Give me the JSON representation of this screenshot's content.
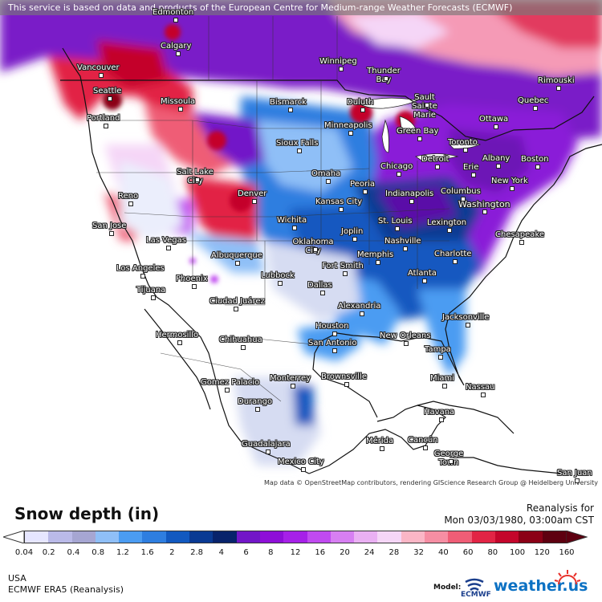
{
  "header": {
    "attribution": "This service is based on data and products of the European Centre for Medium-range Weather Forecasts (ECMWF)"
  },
  "map": {
    "credit": "Map data © OpenStreetMap contributors, rendering GIScience Research Group @ Heidelberg University",
    "cities": [
      {
        "name": "Edmonton"
      },
      {
        "name": "Calgary"
      },
      {
        "name": "Vancouver"
      },
      {
        "name": "Seattle"
      },
      {
        "name": "Winnipeg"
      },
      {
        "name": "Thunder Bay"
      },
      {
        "name": "Sault Sainte Marie"
      },
      {
        "name": "Rimouski"
      },
      {
        "name": "Quebec"
      },
      {
        "name": "Ottawa"
      },
      {
        "name": "Missoula"
      },
      {
        "name": "Bismarck"
      },
      {
        "name": "Duluth"
      },
      {
        "name": "Portland"
      },
      {
        "name": "Minneapolis"
      },
      {
        "name": "Green Bay"
      },
      {
        "name": "Toronto"
      },
      {
        "name": "Sioux Falls"
      },
      {
        "name": "Detroit"
      },
      {
        "name": "Albany"
      },
      {
        "name": "Boston"
      },
      {
        "name": "Erie"
      },
      {
        "name": "Salt Lake City"
      },
      {
        "name": "Chicago"
      },
      {
        "name": "Omaha"
      },
      {
        "name": "Peoria"
      },
      {
        "name": "New York"
      },
      {
        "name": "Reno"
      },
      {
        "name": "Denver"
      },
      {
        "name": "Indianapolis"
      },
      {
        "name": "Columbus"
      },
      {
        "name": "Kansas City"
      },
      {
        "name": "Washington"
      },
      {
        "name": "San Jose"
      },
      {
        "name": "Wichita"
      },
      {
        "name": "St. Louis"
      },
      {
        "name": "Lexington"
      },
      {
        "name": "Joplin"
      },
      {
        "name": "Las Vegas"
      },
      {
        "name": "Chesapeake"
      },
      {
        "name": "Oklahoma City"
      },
      {
        "name": "Nashville"
      },
      {
        "name": "Albuquerque"
      },
      {
        "name": "Charlotte"
      },
      {
        "name": "Fort Smith"
      },
      {
        "name": "Memphis"
      },
      {
        "name": "Los Angeles"
      },
      {
        "name": "Lubbock"
      },
      {
        "name": "Phoenix"
      },
      {
        "name": "Atlanta"
      },
      {
        "name": "Dallas"
      },
      {
        "name": "Tijuana"
      },
      {
        "name": "Ciudad Juárez"
      },
      {
        "name": "Alexandria"
      },
      {
        "name": "Jacksonville"
      },
      {
        "name": "Hermosillo"
      },
      {
        "name": "Houston"
      },
      {
        "name": "New Orleans"
      },
      {
        "name": "San Antonio"
      },
      {
        "name": "Chihuahua"
      },
      {
        "name": "Tampa"
      },
      {
        "name": "Monterrey"
      },
      {
        "name": "Brownsville"
      },
      {
        "name": "Gomez Palacio"
      },
      {
        "name": "Miami"
      },
      {
        "name": "Nassau"
      },
      {
        "name": "Durango"
      },
      {
        "name": "Havana"
      },
      {
        "name": "Guadalajara"
      },
      {
        "name": "Mérida"
      },
      {
        "name": "Cancún"
      },
      {
        "name": "George Town"
      },
      {
        "name": "Mexico City"
      },
      {
        "name": "San Juan"
      }
    ]
  },
  "legend": {
    "title": "Snow depth (in)",
    "reanalysis_label": "Reanalysis for",
    "date": "Mon 03/03/1980, 03:00am CST",
    "ticks": [
      "0.04",
      "0.2",
      "0.4",
      "0.8",
      "1.2",
      "1.6",
      "2",
      "2.8",
      "4",
      "6",
      "8",
      "12",
      "16",
      "20",
      "24",
      "28",
      "32",
      "40",
      "60",
      "80",
      "100",
      "120",
      "160"
    ],
    "colors": [
      "#e6e6ff",
      "#babae8",
      "#a6a6d2",
      "#8fbff7",
      "#4b9cf2",
      "#2e7ee0",
      "#1259c0",
      "#0a3a93",
      "#08236b",
      "#7216c8",
      "#8e0fd8",
      "#a620e8",
      "#c04af0",
      "#d77ff2",
      "#eab0f3",
      "#f5d6f7",
      "#fbb6c6",
      "#f68ea3",
      "#ef5d76",
      "#e22445",
      "#c4062b",
      "#8b0016",
      "#5e0010"
    ]
  },
  "footer": {
    "region": "USA",
    "model_name": "ECMWF ERA5 (Reanalysis)",
    "model_label": "Model:",
    "ecmwf_logo": "ECMWF",
    "site_logo": "weather.us"
  }
}
